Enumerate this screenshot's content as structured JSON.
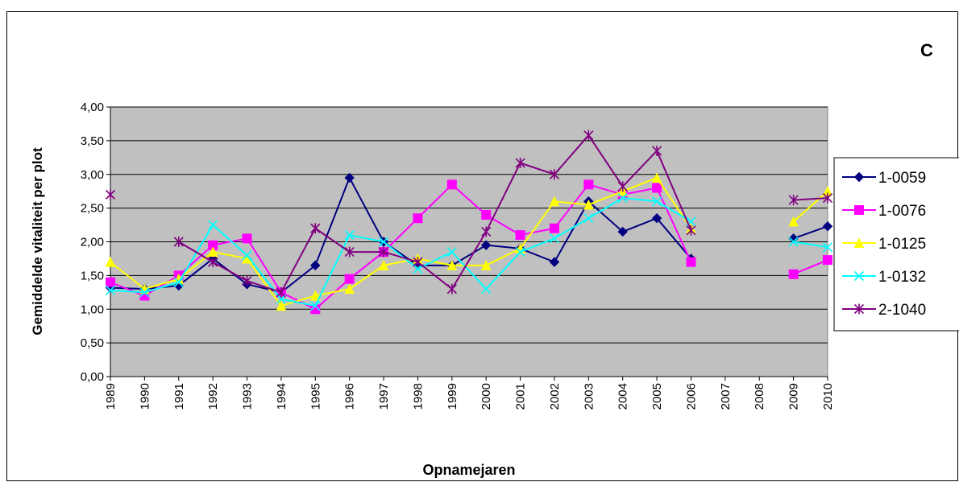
{
  "chart_data": {
    "type": "line",
    "corner_label": "C",
    "y_label": "Gemiddelde vitaliteit per plot",
    "x_label": "Opnamejaren",
    "categories": [
      "1989",
      "1990",
      "1991",
      "1992",
      "1993",
      "1994",
      "1995",
      "1996",
      "1997",
      "1998",
      "1999",
      "2000",
      "2001",
      "2002",
      "2003",
      "2004",
      "2005",
      "2006",
      "2007",
      "2008",
      "2009",
      "2010"
    ],
    "ylim": [
      0,
      4
    ],
    "yticks": [
      {
        "value": 0,
        "label": "0,00"
      },
      {
        "value": 0.5,
        "label": "0,50"
      },
      {
        "value": 1,
        "label": "1,00"
      },
      {
        "value": 1.5,
        "label": "1,50"
      },
      {
        "value": 2,
        "label": "2,00"
      },
      {
        "value": 2.5,
        "label": "2,50"
      },
      {
        "value": 3,
        "label": "3,00"
      },
      {
        "value": 3.5,
        "label": "3,50"
      },
      {
        "value": 4,
        "label": "4,00"
      }
    ],
    "grid": true,
    "plot_background": "#c0c0c0",
    "legend": "right",
    "series": [
      {
        "name": "1-0059",
        "color": "#000080",
        "marker": "diamond",
        "values": [
          1.32,
          1.3,
          1.35,
          1.75,
          1.37,
          1.25,
          1.65,
          2.95,
          2.0,
          1.65,
          1.65,
          1.95,
          1.9,
          1.7,
          2.6,
          2.15,
          2.35,
          1.75,
          null,
          null,
          2.05,
          2.23
        ]
      },
      {
        "name": "1-0076",
        "color": "#ff00ff",
        "marker": "square",
        "values": [
          1.4,
          1.2,
          1.5,
          1.95,
          2.05,
          1.25,
          1.0,
          1.45,
          1.85,
          2.35,
          2.85,
          2.4,
          2.1,
          2.2,
          2.85,
          2.7,
          2.8,
          1.7,
          null,
          null,
          1.52,
          1.73
        ]
      },
      {
        "name": "1-0125",
        "color": "#ffff00",
        "marker": "triangle",
        "values": [
          1.7,
          1.3,
          1.45,
          1.85,
          1.75,
          1.05,
          1.2,
          1.3,
          1.65,
          1.75,
          1.65,
          1.65,
          1.9,
          2.6,
          2.55,
          2.75,
          2.95,
          2.2,
          null,
          null,
          2.3,
          2.75
        ]
      },
      {
        "name": "1-0132",
        "color": "#00ffff",
        "marker": "x",
        "values": [
          1.28,
          1.25,
          1.4,
          2.25,
          1.8,
          1.15,
          1.05,
          2.1,
          2.0,
          1.6,
          1.85,
          1.3,
          1.85,
          2.05,
          2.35,
          2.65,
          2.6,
          2.3,
          null,
          null,
          2.0,
          1.92
        ]
      },
      {
        "name": "2-1040",
        "color": "#800080",
        "marker": "star",
        "values": [
          2.7,
          null,
          2.0,
          1.7,
          1.42,
          1.25,
          2.2,
          1.85,
          1.85,
          1.7,
          1.3,
          2.15,
          3.17,
          3.0,
          3.58,
          2.82,
          3.35,
          2.17,
          null,
          null,
          2.62,
          2.65
        ]
      }
    ]
  }
}
